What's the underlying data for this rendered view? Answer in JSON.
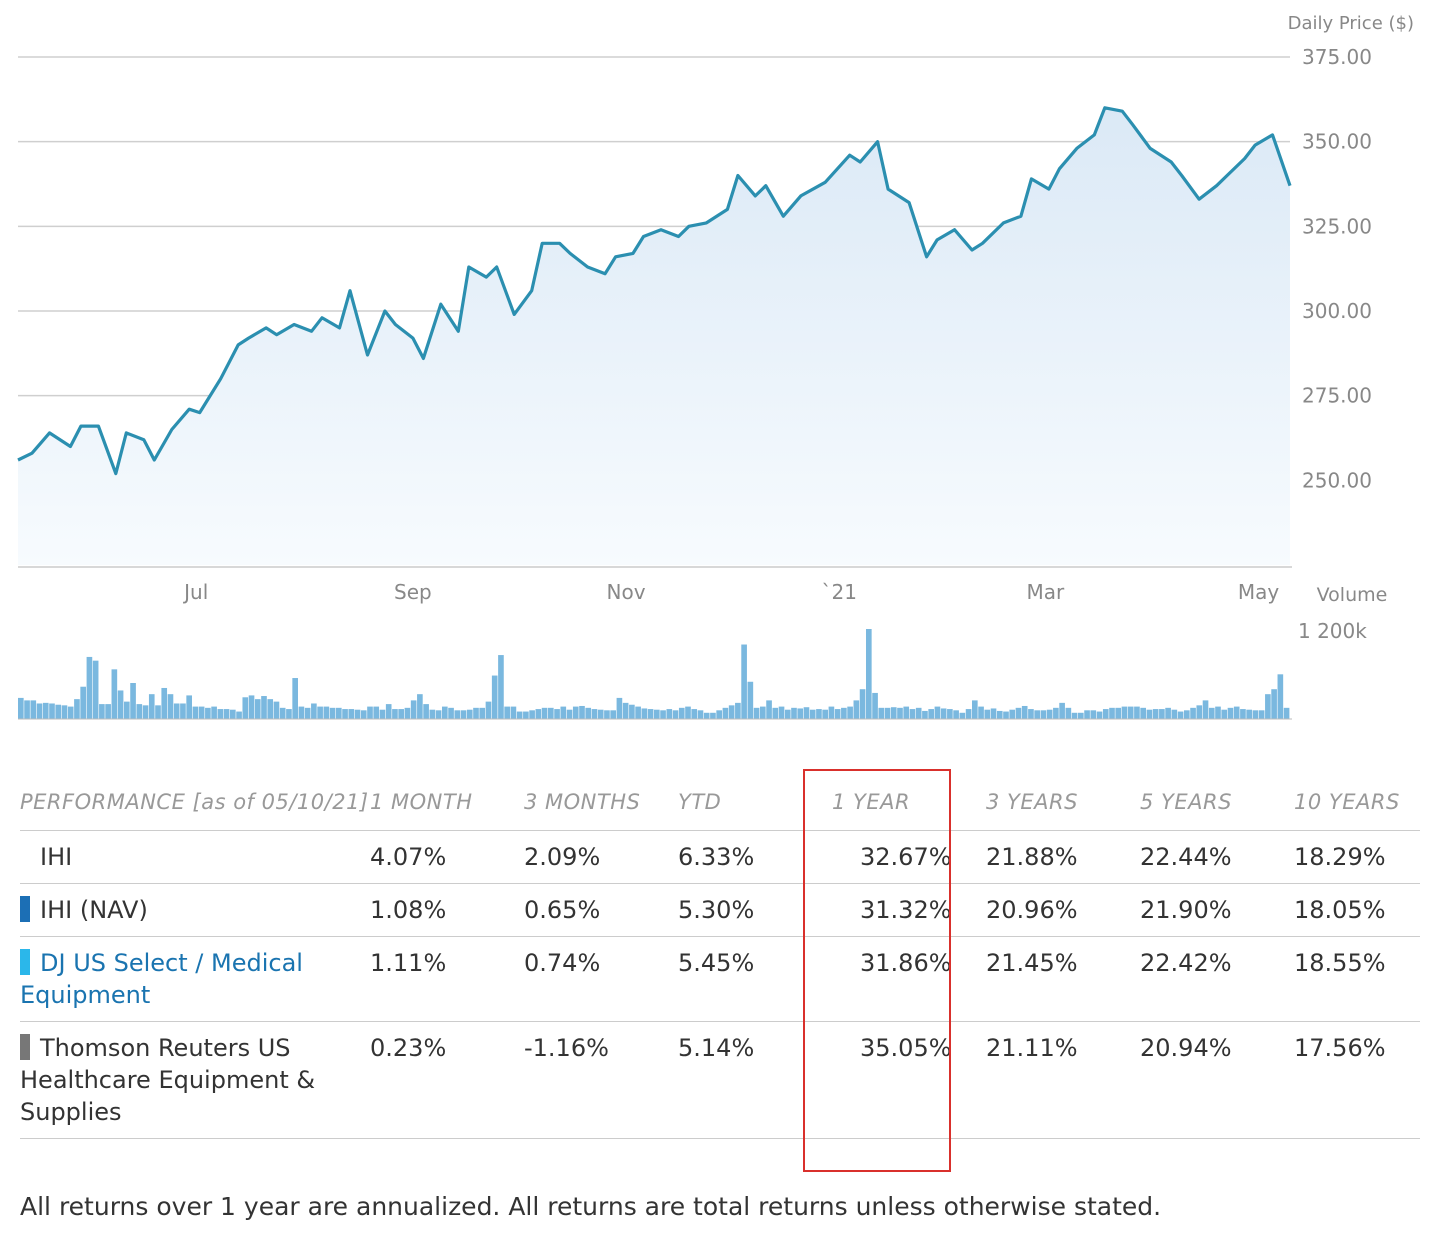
{
  "chart_data": [
    {
      "type": "area",
      "ylabel": "Daily Price ($)",
      "ylim": [
        225,
        375
      ],
      "yticks": [
        "375.00",
        "350.00",
        "325.00",
        "300.00",
        "275.00",
        "250.00"
      ],
      "xticks": [
        "Jul",
        "Sep",
        "Nov",
        "`21",
        "Mar",
        "May"
      ],
      "grid": true,
      "line_color": "#2b8fb0",
      "fill_color": "#e6f1fa",
      "x": [
        "2020-05-11",
        "2020-05-15",
        "2020-05-20",
        "2020-05-26",
        "2020-05-29",
        "2020-06-03",
        "2020-06-08",
        "2020-06-11",
        "2020-06-16",
        "2020-06-19",
        "2020-06-24",
        "2020-06-29",
        "2020-07-02",
        "2020-07-08",
        "2020-07-13",
        "2020-07-16",
        "2020-07-21",
        "2020-07-24",
        "2020-07-29",
        "2020-08-03",
        "2020-08-06",
        "2020-08-11",
        "2020-08-14",
        "2020-08-19",
        "2020-08-24",
        "2020-08-27",
        "2020-09-01",
        "2020-09-04",
        "2020-09-09",
        "2020-09-14",
        "2020-09-17",
        "2020-09-22",
        "2020-09-25",
        "2020-09-30",
        "2020-10-05",
        "2020-10-08",
        "2020-10-13",
        "2020-10-16",
        "2020-10-21",
        "2020-10-26",
        "2020-10-29",
        "2020-11-03",
        "2020-11-06",
        "2020-11-11",
        "2020-11-16",
        "2020-11-19",
        "2020-11-24",
        "2020-11-30",
        "2020-12-03",
        "2020-12-08",
        "2020-12-11",
        "2020-12-16",
        "2020-12-21",
        "2020-12-28",
        "2021-01-04",
        "2021-01-07",
        "2021-01-12",
        "2021-01-15",
        "2021-01-21",
        "2021-01-26",
        "2021-01-29",
        "2021-02-03",
        "2021-02-08",
        "2021-02-11",
        "2021-02-17",
        "2021-02-22",
        "2021-02-25",
        "2021-03-02",
        "2021-03-05",
        "2021-03-10",
        "2021-03-15",
        "2021-03-18",
        "2021-03-23",
        "2021-03-26",
        "2021-03-31",
        "2021-04-06",
        "2021-04-09",
        "2021-04-14",
        "2021-04-19",
        "2021-04-22",
        "2021-04-27",
        "2021-04-30",
        "2021-05-05",
        "2021-05-10"
      ],
      "y": [
        256,
        258,
        264,
        260,
        266,
        266,
        252,
        264,
        262,
        256,
        265,
        271,
        270,
        280,
        290,
        292,
        295,
        293,
        296,
        294,
        298,
        295,
        306,
        287,
        300,
        296,
        292,
        286,
        302,
        294,
        313,
        310,
        313,
        299,
        306,
        320,
        320,
        317,
        313,
        311,
        316,
        317,
        322,
        324,
        322,
        325,
        326,
        330,
        340,
        334,
        337,
        328,
        334,
        338,
        346,
        344,
        350,
        336,
        332,
        316,
        321,
        324,
        318,
        320,
        326,
        328,
        339,
        336,
        342,
        348,
        352,
        360,
        359,
        355,
        348,
        344,
        340,
        333,
        337,
        340,
        345,
        349,
        352,
        337
      ]
    },
    {
      "type": "bar",
      "ylabel": "Volume",
      "ytick": "1 200k",
      "bar_color": "#7ab8df",
      "values": [
        340,
        300,
        300,
        250,
        260,
        250,
        230,
        220,
        200,
        320,
        520,
        1000,
        940,
        240,
        240,
        800,
        460,
        280,
        580,
        240,
        220,
        400,
        220,
        500,
        400,
        250,
        250,
        380,
        200,
        200,
        180,
        200,
        160,
        160,
        150,
        120,
        350,
        380,
        320,
        370,
        320,
        280,
        180,
        160,
        660,
        200,
        180,
        250,
        200,
        200,
        180,
        180,
        160,
        160,
        150,
        140,
        200,
        200,
        150,
        240,
        160,
        160,
        180,
        300,
        400,
        240,
        150,
        140,
        200,
        180,
        140,
        140,
        150,
        180,
        180,
        280,
        700,
        1030,
        200,
        200,
        120,
        120,
        140,
        160,
        180,
        180,
        160,
        200,
        150,
        200,
        210,
        180,
        160,
        150,
        140,
        140,
        340,
        260,
        230,
        200,
        170,
        160,
        150,
        140,
        160,
        140,
        180,
        200,
        160,
        140,
        100,
        100,
        140,
        180,
        220,
        260,
        1200,
        600,
        180,
        200,
        300,
        180,
        200,
        150,
        180,
        170,
        190,
        150,
        160,
        150,
        200,
        160,
        180,
        200,
        300,
        480,
        1450,
        420,
        180,
        180,
        190,
        180,
        200,
        160,
        180,
        130,
        160,
        200,
        170,
        160,
        140,
        100,
        160,
        300,
        200,
        150,
        170,
        130,
        120,
        150,
        180,
        210,
        160,
        140,
        140,
        150,
        180,
        260,
        180,
        100,
        100,
        140,
        140,
        120,
        160,
        180,
        180,
        200,
        200,
        200,
        180,
        150,
        160,
        160,
        180,
        150,
        120,
        140,
        180,
        220,
        300,
        180,
        200,
        150,
        180,
        200,
        160,
        150,
        140,
        140,
        400,
        480,
        720,
        180
      ]
    }
  ],
  "performance": {
    "header_col": "PERFORMANCE [as of 05/10/21]",
    "periods": [
      "1 MONTH",
      "3 MONTHS",
      "YTD",
      "1 YEAR",
      "3 YEARS",
      "5 YEARS",
      "10 YEARS"
    ],
    "rows": [
      {
        "name": "IHI",
        "swatch": "",
        "values": [
          "4.07%",
          "2.09%",
          "6.33%",
          "32.67%",
          "21.88%",
          "22.44%",
          "18.29%"
        ]
      },
      {
        "name": "IHI (NAV)",
        "swatch": "#1c6fb5",
        "values": [
          "1.08%",
          "0.65%",
          "5.30%",
          "31.32%",
          "20.96%",
          "21.90%",
          "18.05%"
        ]
      },
      {
        "name": "DJ US Select / Medical Equipment",
        "swatch": "#2bb7ea",
        "link": true,
        "values": [
          "1.11%",
          "0.74%",
          "5.45%",
          "31.86%",
          "21.45%",
          "22.42%",
          "18.55%"
        ]
      },
      {
        "name": "Thomson Reuters US Healthcare Equipment & Supplies",
        "swatch": "#777777",
        "values": [
          "0.23%",
          "-1.16%",
          "5.14%",
          "35.05%",
          "21.11%",
          "20.94%",
          "17.56%"
        ]
      }
    ]
  },
  "footnote": "All returns over 1 year are annualized. All returns are total returns unless otherwise stated."
}
